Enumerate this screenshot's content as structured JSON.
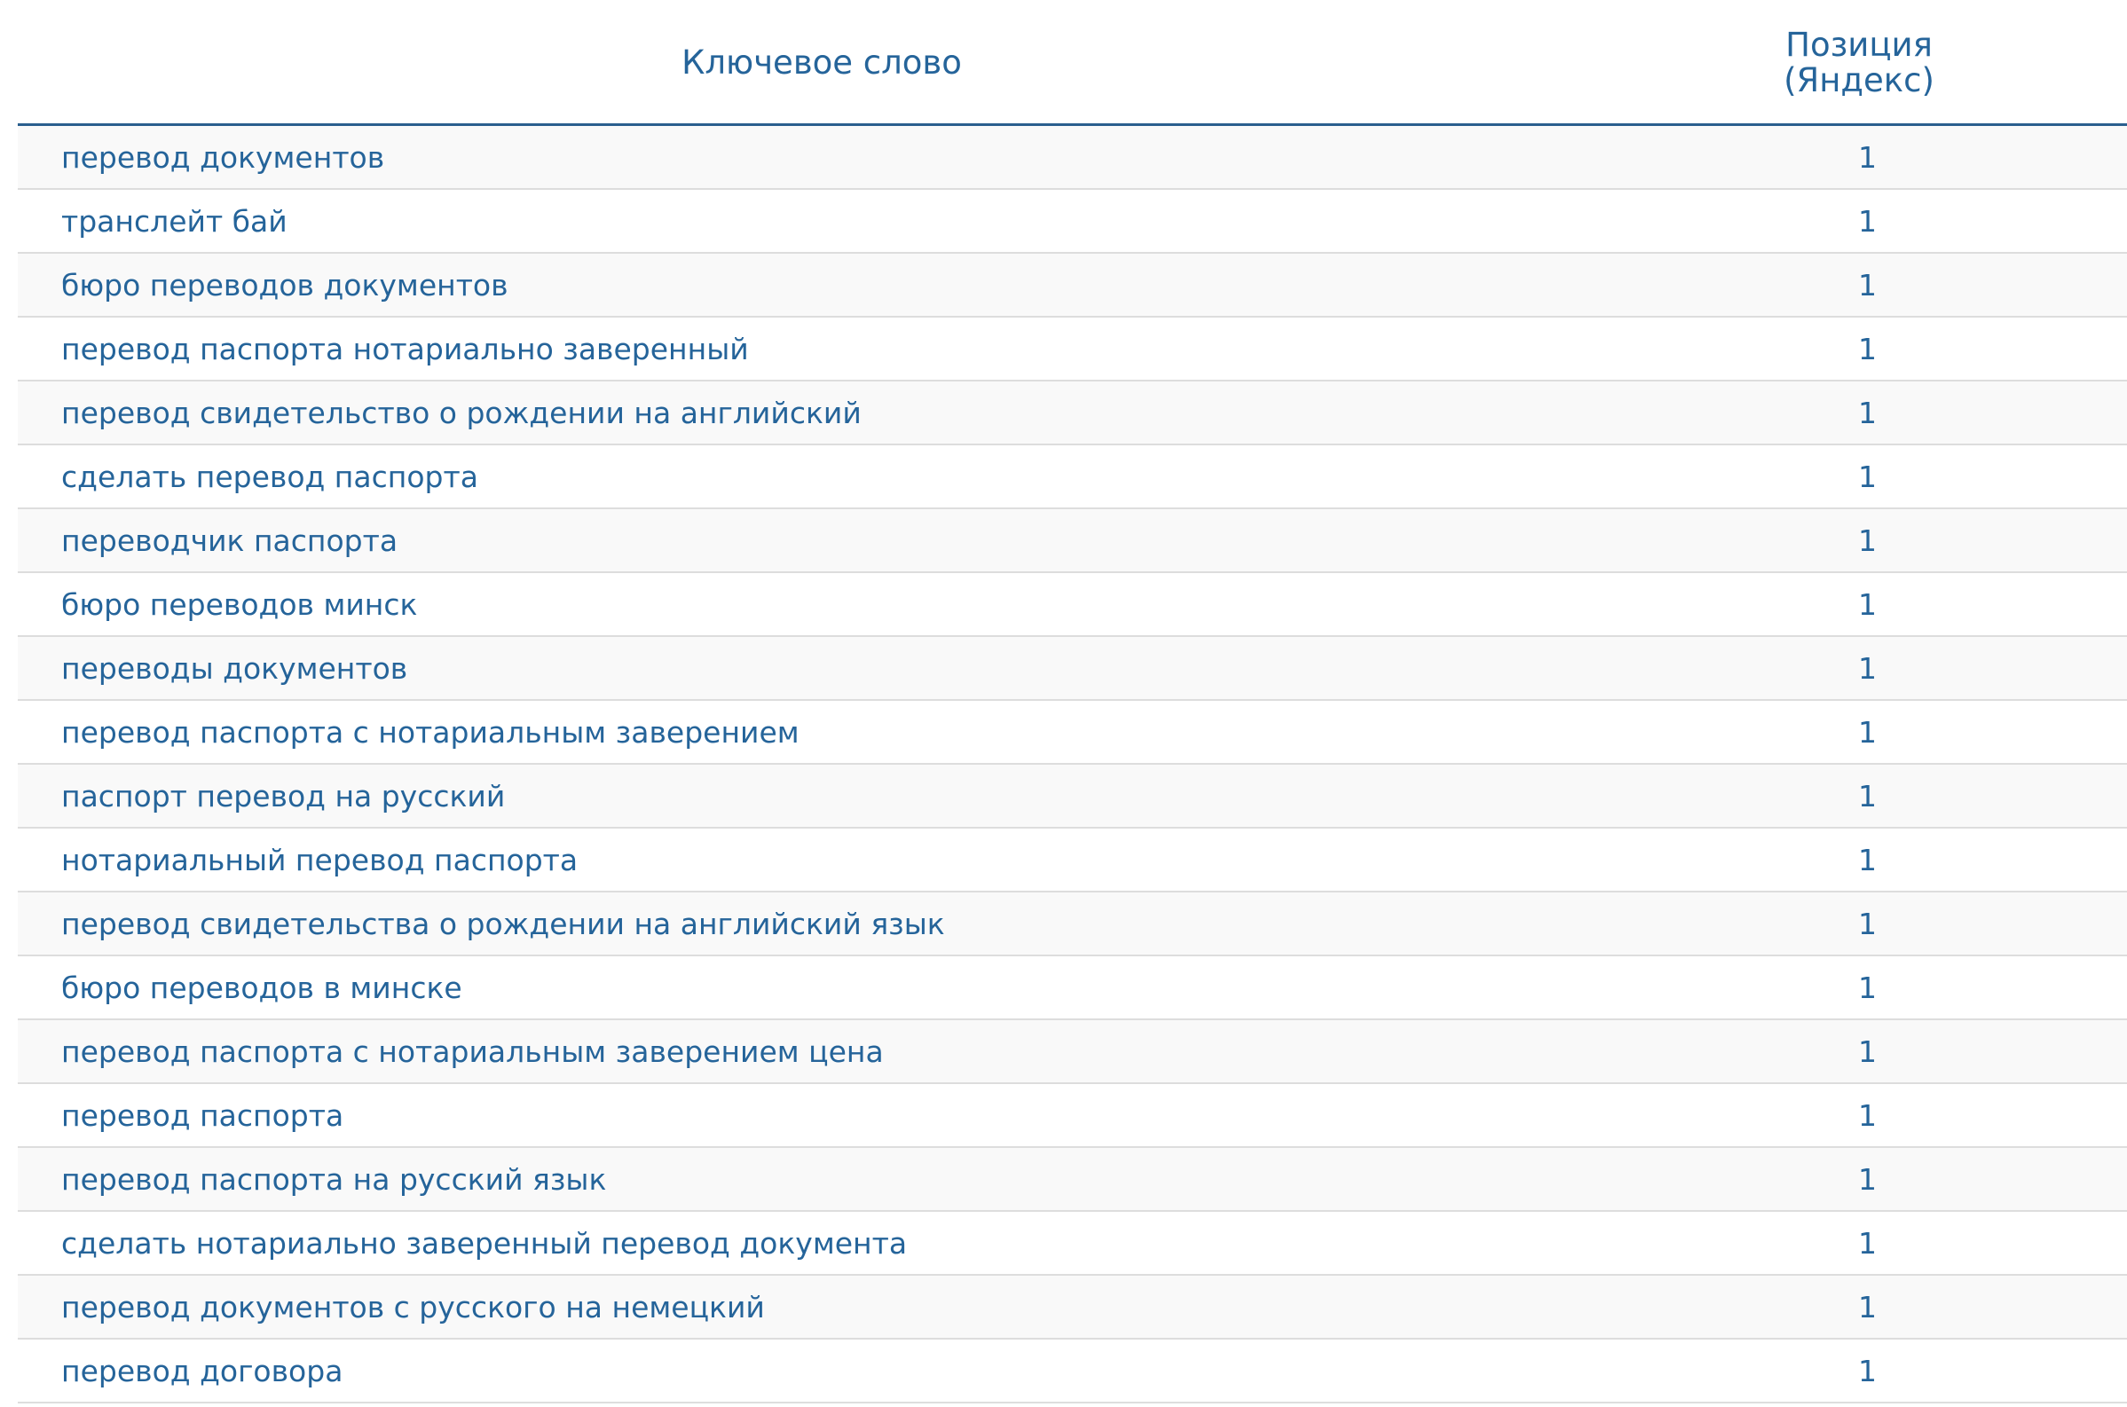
{
  "table": {
    "headers": {
      "keyword": "Ключевое слово",
      "position_line1": "Позиция",
      "position_line2": "(Яндекс)"
    },
    "rows": [
      {
        "keyword": "перевод документов",
        "position": "1"
      },
      {
        "keyword": "транслейт бай",
        "position": "1"
      },
      {
        "keyword": "бюро переводов документов",
        "position": "1"
      },
      {
        "keyword": "перевод паспорта нотариально заверенный",
        "position": "1"
      },
      {
        "keyword": "перевод свидетельство о рождении на английский",
        "position": "1"
      },
      {
        "keyword": "сделать перевод паспорта",
        "position": "1"
      },
      {
        "keyword": "переводчик паспорта",
        "position": "1"
      },
      {
        "keyword": "бюро переводов минск",
        "position": "1"
      },
      {
        "keyword": "переводы документов",
        "position": "1"
      },
      {
        "keyword": "перевод паспорта с нотариальным заверением",
        "position": "1"
      },
      {
        "keyword": "паспорт перевод на русский",
        "position": "1"
      },
      {
        "keyword": "нотариальный перевод паспорта",
        "position": "1"
      },
      {
        "keyword": "перевод свидетельства о рождении на английский язык",
        "position": "1"
      },
      {
        "keyword": "бюро переводов в минске",
        "position": "1"
      },
      {
        "keyword": "перевод паспорта с нотариальным заверением цена",
        "position": "1"
      },
      {
        "keyword": "перевод паспорта",
        "position": "1"
      },
      {
        "keyword": "перевод паспорта на русский язык",
        "position": "1"
      },
      {
        "keyword": "сделать нотариально заверенный перевод документа",
        "position": "1"
      },
      {
        "keyword": "перевод документов с русского на немецкий",
        "position": "1"
      },
      {
        "keyword": "перевод договора",
        "position": "1"
      }
    ]
  },
  "colors": {
    "text": "#25649a",
    "header_border": "#2a5f8e",
    "row_border": "#dddddd",
    "stripe": "#f9f9f9"
  }
}
